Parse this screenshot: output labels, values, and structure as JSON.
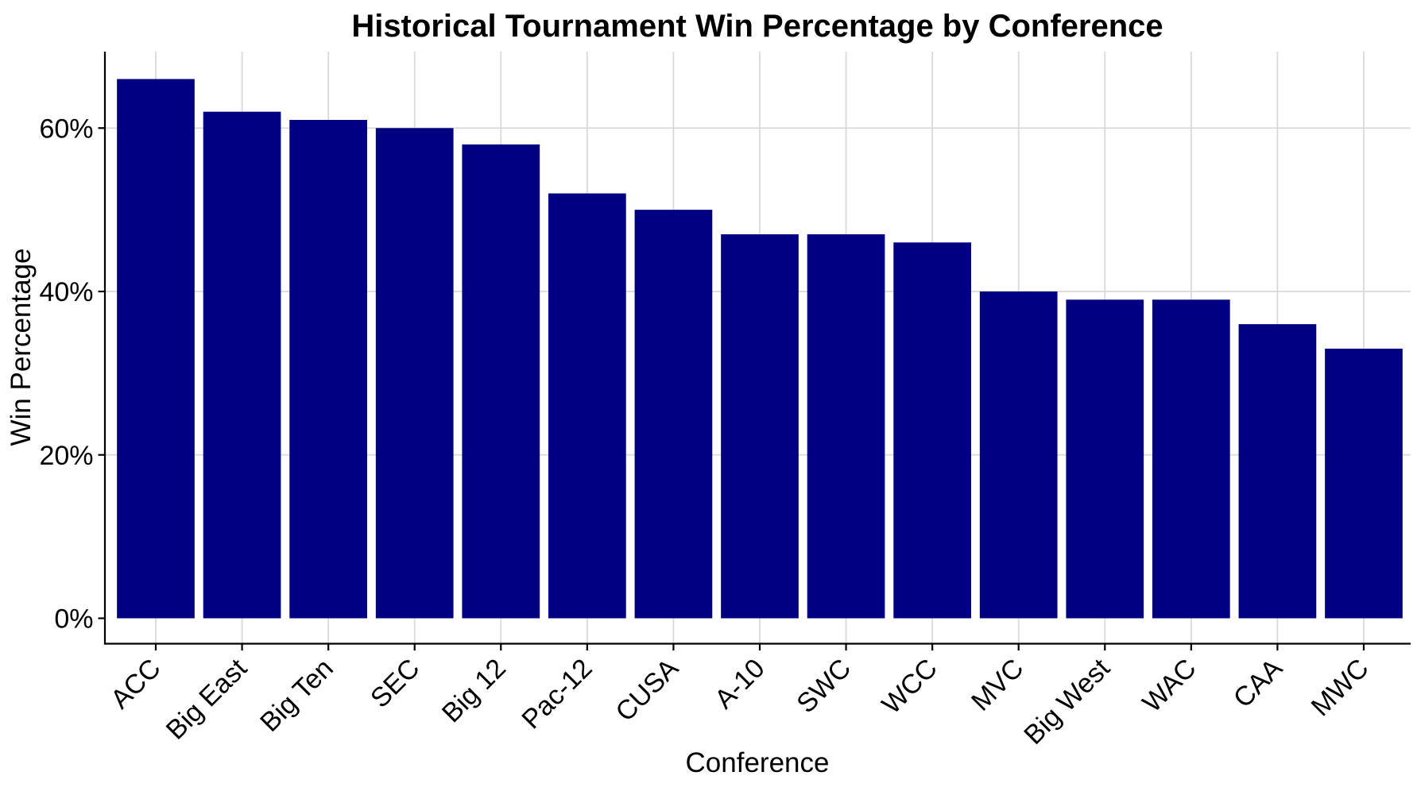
{
  "chart_data": {
    "type": "bar",
    "title": "Historical Tournament Win Percentage by Conference",
    "xlabel": "Conference",
    "ylabel": "Win Percentage",
    "categories": [
      "ACC",
      "Big East",
      "Big Ten",
      "SEC",
      "Big 12",
      "Pac-12",
      "CUSA",
      "A-10",
      "SWC",
      "WCC",
      "MVC",
      "Big West",
      "WAC",
      "CAA",
      "MWC"
    ],
    "values": [
      66,
      62,
      61,
      60,
      58,
      52,
      50,
      47,
      47,
      46,
      40,
      39,
      39,
      36,
      33
    ],
    "unit": "%",
    "yticks": [
      0,
      20,
      40,
      60
    ],
    "ytick_labels": [
      "0%",
      "20%",
      "40%",
      "60%"
    ],
    "ylim": [
      0,
      69
    ],
    "legend": "none",
    "grid": "major horizontal lines and vertical category lines, light gray",
    "bar_color": "#000080",
    "gridline_color": "#D9D9D9",
    "axis_color": "#000000",
    "text_color": "#000000",
    "background_color": "#FFFFFF"
  }
}
